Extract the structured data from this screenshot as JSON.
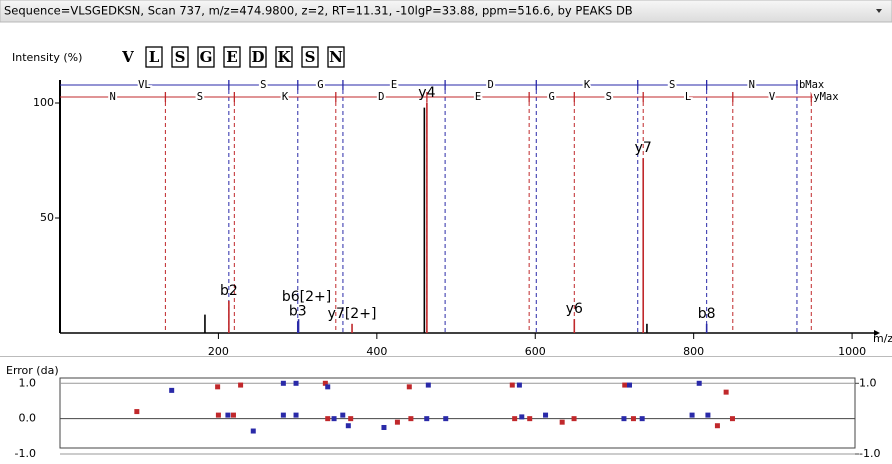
{
  "header": "Sequence=VLSGEDKSN, Scan 737, m/z=474.9800, z=2, RT=11.31, -10lgP=33.88, ppm=516.6, by PEAKS DB",
  "chart_data": [
    {
      "type": "spectrum",
      "ylabel": "Intensity (%)",
      "xlabel": "m/z",
      "sequence": [
        "V",
        "L",
        "S",
        "G",
        "E",
        "D",
        "K",
        "S",
        "N"
      ],
      "xlim": [
        0,
        1010
      ],
      "xticks": [
        200,
        400,
        600,
        800,
        1000
      ],
      "ylim": [
        0,
        110
      ],
      "yticks": [
        50,
        100
      ],
      "b_ladder": {
        "color": "#2a2aa8",
        "masses": [
          213.16,
          300.2,
          357.2,
          486.2,
          601.3,
          729.4,
          816.4,
          930.4
        ],
        "labels": [
          "VL",
          "S",
          "G",
          "E",
          "D",
          "K",
          "S",
          "N",
          "bMax"
        ]
      },
      "y_ladder": {
        "color": "#c0282b",
        "masses": [
          133.06,
          220.1,
          348.2,
          463.2,
          592.3,
          649.3,
          736.3,
          849.4,
          948.5
        ],
        "labels": [
          "N",
          "S",
          "K",
          "D",
          "E",
          "G",
          "S",
          "L",
          "V",
          "yMax"
        ]
      },
      "peaks": {
        "x": [
          183,
          213.2,
          300.2,
          301.2,
          368.7,
          460,
          463.2,
          649.3,
          736.3,
          741,
          816.4
        ],
        "values": [
          8,
          14,
          5,
          6,
          4,
          98,
          100,
          6,
          76,
          4,
          4
        ],
        "labels": [
          null,
          "b2",
          "b3",
          "b6[2+]",
          "y7[2+]",
          null,
          "y4",
          "y6",
          "y7",
          null,
          "b8"
        ],
        "colors": [
          "#000000",
          "#c0282b",
          "#2a2aa8",
          "#2a2aa8",
          "#c0282b",
          "#000000",
          "#c0282b",
          "#c0282b",
          "#c0282b",
          "#000000",
          "#2a2aa8"
        ]
      }
    },
    {
      "type": "scatter",
      "ylabel": "Error (da)",
      "xlim": [
        0,
        1010
      ],
      "ylim": [
        -1,
        1.15
      ],
      "yticks": [
        {
          "value": 1,
          "label": "1.0"
        },
        {
          "value": 0,
          "label": "0.0"
        },
        {
          "value": -1,
          "label": "-1.0"
        }
      ],
      "y2lim": [
        -1,
        1.15
      ],
      "y2ticks": [
        {
          "value": 1,
          "label": "1.0"
        },
        {
          "value": -1,
          "label": "-1.0"
        }
      ],
      "series": [
        {
          "color": "#c0282b",
          "x": [
            199,
            228,
            335,
            441,
            571,
            713,
            841,
            97,
            200,
            219,
            338,
            367,
            426,
            443,
            574,
            593,
            634,
            649,
            724,
            830,
            849
          ],
          "values": [
            0.9,
            0.95,
            1.0,
            0.9,
            0.95,
            0.95,
            0.75,
            0.2,
            0.1,
            0.1,
            0.0,
            0.0,
            -0.1,
            0.0,
            0.0,
            0.0,
            -0.1,
            0.0,
            0.0,
            -0.2,
            0.0
          ]
        },
        {
          "color": "#2a2aa8",
          "x": [
            141,
            282,
            298,
            338,
            465,
            580,
            719,
            807,
            212,
            244,
            282,
            298,
            346,
            357,
            364,
            409,
            463,
            487,
            583,
            613,
            712,
            735,
            798,
            818
          ],
          "values": [
            0.8,
            1.0,
            1.0,
            0.9,
            0.95,
            0.95,
            0.95,
            1.0,
            0.1,
            -0.35,
            0.1,
            0.1,
            0.0,
            0.1,
            -0.2,
            -0.25,
            0.0,
            0.0,
            0.05,
            0.1,
            0.0,
            0.0,
            0.1,
            0.1
          ]
        }
      ]
    }
  ]
}
